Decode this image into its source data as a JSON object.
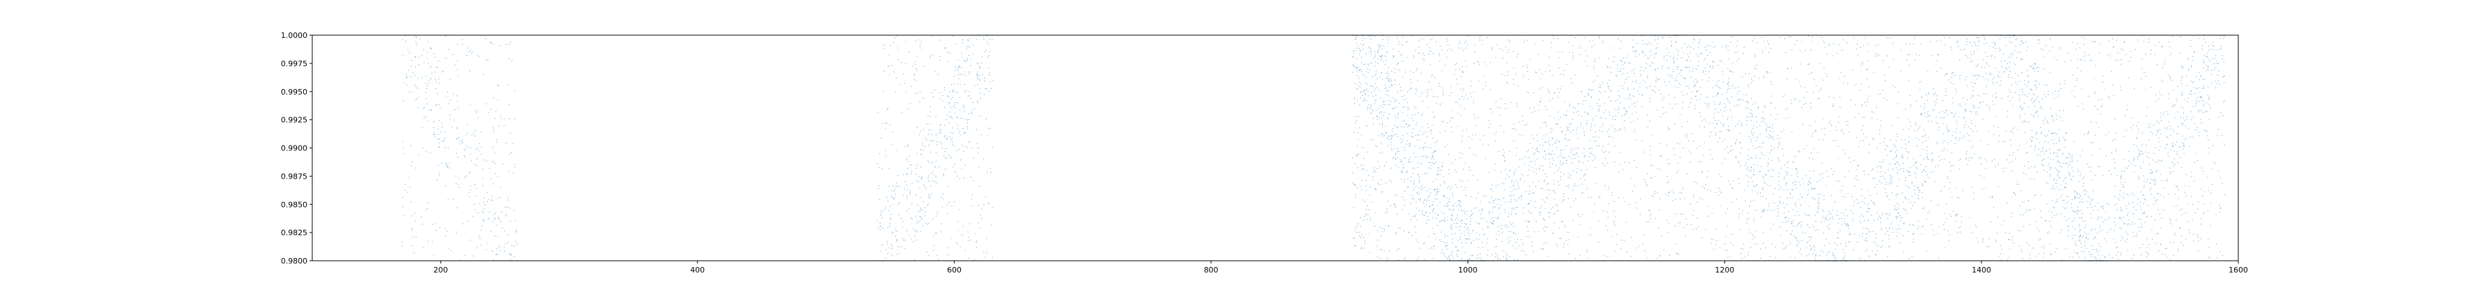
{
  "chart_data": {
    "type": "scatter",
    "title": "",
    "xlabel": "",
    "ylabel": "",
    "xlim": [
      100,
      1600
    ],
    "ylim": [
      0.98,
      1.0
    ],
    "grid": false,
    "marker_color": "#1f77b4",
    "x_ticks": [
      200,
      400,
      600,
      800,
      1000,
      1200,
      1400,
      1600
    ],
    "x_tick_labels": [
      "200",
      "400",
      "600",
      "800",
      "1000",
      "1200",
      "1400",
      "1600"
    ],
    "y_ticks": [
      0.98,
      0.9825,
      0.985,
      0.9875,
      0.99,
      0.9925,
      0.995,
      0.9975,
      1.0
    ],
    "y_tick_labels": [
      "0.9800",
      "0.9825",
      "0.9850",
      "0.9875",
      "0.9900",
      "0.9925",
      "0.9950",
      "0.9975",
      "1.0000"
    ],
    "point_clusters": [
      {
        "x_range": [
          170,
          260
        ],
        "y_range": [
          0.98,
          1.0
        ],
        "approx_points": 450
      },
      {
        "x_range": [
          540,
          630
        ],
        "y_range": [
          0.98,
          1.0
        ],
        "approx_points": 650
      },
      {
        "x_range": [
          910,
          1000
        ],
        "y_range": [
          0.98,
          1.0
        ],
        "approx_points": 1100
      },
      {
        "x_range": [
          1000,
          1160
        ],
        "y_range": [
          0.98,
          1.0
        ],
        "approx_points": 1300
      },
      {
        "x_range": [
          1160,
          1290
        ],
        "y_range": [
          0.98,
          1.0
        ],
        "approx_points": 1100
      },
      {
        "x_range": [
          1290,
          1420
        ],
        "y_range": [
          0.98,
          1.0
        ],
        "approx_points": 1000
      },
      {
        "x_range": [
          1420,
          1490
        ],
        "y_range": [
          0.98,
          1.0
        ],
        "approx_points": 700
      },
      {
        "x_range": [
          1490,
          1590
        ],
        "y_range": [
          0.98,
          1.0
        ],
        "approx_points": 800
      }
    ]
  }
}
